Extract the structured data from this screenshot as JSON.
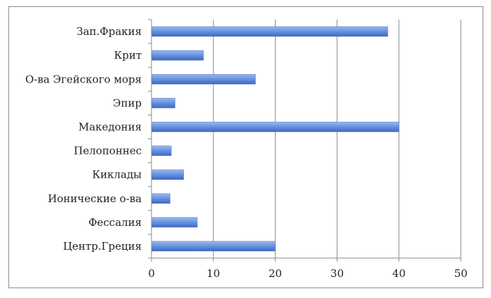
{
  "chart_data": {
    "type": "bar",
    "orientation": "horizontal",
    "categories": [
      "Зап.Фракия",
      "Крит",
      "О-ва Эгейского моря",
      "Эпир",
      "Македония",
      "Пелопоннес",
      "Киклады",
      "Ионические о-ва",
      "Фессалия",
      "Центр.Греция"
    ],
    "values": [
      38.2,
      8.4,
      16.8,
      3.8,
      40.0,
      3.2,
      5.2,
      3.0,
      7.4,
      20.0
    ],
    "title": "",
    "xlabel": "",
    "ylabel": "",
    "xlim": [
      0,
      50
    ],
    "xticks": [
      "0",
      "10",
      "20",
      "30",
      "40",
      "50"
    ],
    "grid": "vertical",
    "legend": "none",
    "bar_color": "#5b86d6"
  }
}
